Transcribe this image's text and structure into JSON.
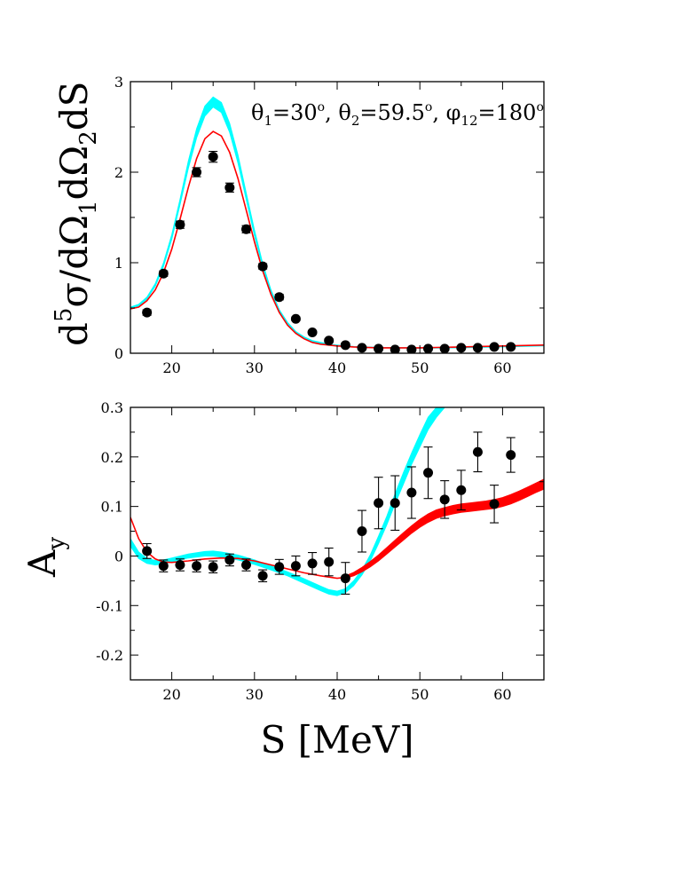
{
  "colors": {
    "band_cyan": "#00ffff",
    "band_red": "#ff0000",
    "data_points": "#000000",
    "axes": "#000000"
  },
  "xlabel": {
    "text": "S [MeV]"
  },
  "top_panel": {
    "ylabel": {
      "pre": "d",
      "sup": "5",
      "main": "σ/dΩ",
      "sub1": "1",
      "mid": "dΩ",
      "sub2": "2",
      "end": "dS"
    },
    "annotation": {
      "theta1": "θ",
      "theta1_sub": "1",
      "theta1_val": "=30",
      "theta1_sup": "o",
      "theta2": "θ",
      "theta2_sub": "2",
      "theta2_val": "=59.5",
      "theta2_sup": "o",
      "phi": "φ",
      "phi_sub": "12",
      "phi_val": "=180",
      "phi_sup": "o"
    }
  },
  "bottom_panel": {
    "ylabel": {
      "main": "A",
      "sub": "y"
    }
  },
  "chart_data": [
    {
      "type": "line",
      "panel": "top",
      "xlim": [
        15,
        65
      ],
      "ylim": [
        0,
        3
      ],
      "xticks": [
        20,
        30,
        40,
        50,
        60
      ],
      "yticks": [
        0,
        1,
        2,
        3
      ],
      "xtick_labels": [
        "20",
        "30",
        "40",
        "50",
        "60"
      ],
      "ytick_labels": [
        "0",
        "1",
        "2",
        "3"
      ],
      "grid": false,
      "series": [
        {
          "kind": "band",
          "color": "cyan",
          "x": [
            15,
            16,
            17,
            18,
            19,
            20,
            21,
            22,
            23,
            24,
            25,
            26,
            27,
            28,
            29,
            30,
            31,
            32,
            33,
            34,
            35,
            36,
            37,
            38,
            39,
            40,
            42,
            45,
            50,
            55,
            60,
            65
          ],
          "lower": [
            0.49,
            0.52,
            0.6,
            0.74,
            0.96,
            1.26,
            1.64,
            2.04,
            2.38,
            2.62,
            2.72,
            2.66,
            2.44,
            2.1,
            1.7,
            1.3,
            0.95,
            0.67,
            0.46,
            0.32,
            0.23,
            0.17,
            0.13,
            0.11,
            0.095,
            0.085,
            0.07,
            0.06,
            0.055,
            0.06,
            0.07,
            0.08
          ],
          "upper": [
            0.51,
            0.54,
            0.62,
            0.77,
            1.0,
            1.31,
            1.7,
            2.12,
            2.48,
            2.73,
            2.83,
            2.77,
            2.54,
            2.19,
            1.77,
            1.36,
            0.99,
            0.7,
            0.48,
            0.34,
            0.24,
            0.18,
            0.14,
            0.12,
            0.1,
            0.09,
            0.075,
            0.065,
            0.06,
            0.065,
            0.075,
            0.085
          ]
        },
        {
          "kind": "line",
          "color": "red",
          "x": [
            15,
            16,
            17,
            18,
            19,
            20,
            21,
            22,
            23,
            24,
            25,
            26,
            27,
            28,
            29,
            30,
            31,
            32,
            33,
            34,
            35,
            36,
            37,
            38,
            39,
            40,
            42,
            45,
            50,
            55,
            60,
            65
          ],
          "y": [
            0.49,
            0.51,
            0.58,
            0.7,
            0.89,
            1.15,
            1.48,
            1.83,
            2.15,
            2.37,
            2.45,
            2.4,
            2.22,
            1.93,
            1.58,
            1.23,
            0.91,
            0.65,
            0.45,
            0.31,
            0.22,
            0.16,
            0.12,
            0.1,
            0.09,
            0.08,
            0.07,
            0.06,
            0.06,
            0.07,
            0.08,
            0.09
          ]
        },
        {
          "kind": "points",
          "x": [
            17,
            19,
            21,
            23,
            25,
            27,
            29,
            31,
            33,
            35,
            37,
            39,
            41,
            43,
            45,
            47,
            49,
            51,
            53,
            55,
            57,
            59,
            61
          ],
          "y": [
            0.45,
            0.88,
            1.42,
            2.0,
            2.17,
            1.83,
            1.37,
            0.96,
            0.62,
            0.38,
            0.23,
            0.14,
            0.09,
            0.06,
            0.05,
            0.04,
            0.04,
            0.05,
            0.05,
            0.06,
            0.06,
            0.07,
            0.07
          ],
          "err": [
            0.03,
            0.03,
            0.04,
            0.05,
            0.06,
            0.05,
            0.04,
            0.03,
            0.03,
            0.02,
            0.02,
            0.02,
            0.02,
            0.015,
            0.015,
            0.015,
            0.015,
            0.015,
            0.015,
            0.015,
            0.015,
            0.02,
            0.02
          ]
        }
      ]
    },
    {
      "type": "line",
      "panel": "bottom",
      "xlim": [
        15,
        65
      ],
      "ylim": [
        -0.25,
        0.3
      ],
      "xticks": [
        20,
        30,
        40,
        50,
        60
      ],
      "yticks": [
        -0.2,
        -0.1,
        0,
        0.1,
        0.2,
        0.3
      ],
      "xtick_labels": [
        "20",
        "30",
        "40",
        "50",
        "60"
      ],
      "ytick_labels": [
        "-0.2",
        "-0.1",
        "0",
        "0.1",
        "0.2",
        "0.3"
      ],
      "grid": false,
      "series": [
        {
          "kind": "band",
          "color": "cyan",
          "x": [
            15,
            16,
            17,
            18,
            19,
            20,
            22,
            24,
            25,
            26,
            28,
            30,
            32,
            34,
            36,
            38,
            39,
            40,
            41,
            42,
            43,
            44,
            45,
            46,
            47,
            48,
            49,
            50,
            51,
            52,
            53
          ],
          "lower": [
            0.02,
            -0.005,
            -0.015,
            -0.018,
            -0.016,
            -0.012,
            -0.004,
            0.0,
            0.0,
            -0.002,
            -0.008,
            -0.017,
            -0.028,
            -0.04,
            -0.055,
            -0.07,
            -0.077,
            -0.08,
            -0.074,
            -0.06,
            -0.038,
            -0.01,
            0.025,
            0.063,
            0.105,
            0.145,
            0.185,
            0.22,
            0.255,
            0.28,
            0.3
          ],
          "upper": [
            0.035,
            0.008,
            -0.005,
            -0.009,
            -0.008,
            -0.004,
            0.004,
            0.009,
            0.01,
            0.008,
            0.002,
            -0.008,
            -0.02,
            -0.032,
            -0.046,
            -0.061,
            -0.068,
            -0.071,
            -0.066,
            -0.05,
            -0.028,
            0.002,
            0.04,
            0.08,
            0.125,
            0.168,
            0.208,
            0.245,
            0.28,
            0.3,
            0.3
          ]
        },
        {
          "kind": "band",
          "color": "red",
          "x": [
            41,
            42,
            43,
            44,
            45,
            46,
            47,
            48,
            49,
            50,
            51,
            52,
            53,
            54,
            55,
            56,
            57,
            58,
            59,
            60,
            61,
            62,
            63,
            64,
            65
          ],
          "lower": [
            -0.045,
            -0.04,
            -0.032,
            -0.022,
            -0.01,
            0.004,
            0.018,
            0.032,
            0.046,
            0.058,
            0.068,
            0.076,
            0.081,
            0.085,
            0.088,
            0.09,
            0.092,
            0.094,
            0.096,
            0.1,
            0.105,
            0.112,
            0.12,
            0.128,
            0.135
          ],
          "upper": [
            -0.04,
            -0.033,
            -0.023,
            -0.011,
            0.002,
            0.017,
            0.032,
            0.047,
            0.061,
            0.074,
            0.085,
            0.093,
            0.098,
            0.102,
            0.105,
            0.107,
            0.109,
            0.111,
            0.114,
            0.118,
            0.124,
            0.131,
            0.139,
            0.147,
            0.155
          ]
        },
        {
          "kind": "line",
          "color": "red",
          "x": [
            15,
            16,
            17,
            18,
            19,
            20,
            22,
            24,
            26,
            28,
            30,
            32,
            34,
            36,
            38,
            40,
            41
          ],
          "y": [
            0.078,
            0.035,
            0.008,
            -0.006,
            -0.012,
            -0.013,
            -0.01,
            -0.006,
            -0.004,
            -0.005,
            -0.01,
            -0.018,
            -0.026,
            -0.034,
            -0.04,
            -0.045,
            -0.043
          ]
        },
        {
          "kind": "points",
          "x": [
            17,
            19,
            21,
            23,
            25,
            27,
            29,
            31,
            33,
            35,
            37,
            39,
            41,
            43,
            45,
            47,
            49,
            51,
            53,
            55,
            57,
            59,
            61
          ],
          "y": [
            0.01,
            -0.02,
            -0.018,
            -0.02,
            -0.022,
            -0.008,
            -0.018,
            -0.04,
            -0.022,
            -0.02,
            -0.015,
            -0.012,
            -0.045,
            0.05,
            0.107,
            0.107,
            0.128,
            0.168,
            0.114,
            0.133,
            0.21,
            0.105,
            0.204
          ],
          "err": [
            0.015,
            0.012,
            0.012,
            0.012,
            0.012,
            0.012,
            0.012,
            0.012,
            0.015,
            0.02,
            0.022,
            0.028,
            0.032,
            0.042,
            0.052,
            0.055,
            0.052,
            0.052,
            0.038,
            0.04,
            0.04,
            0.038,
            0.035
          ]
        }
      ]
    }
  ]
}
